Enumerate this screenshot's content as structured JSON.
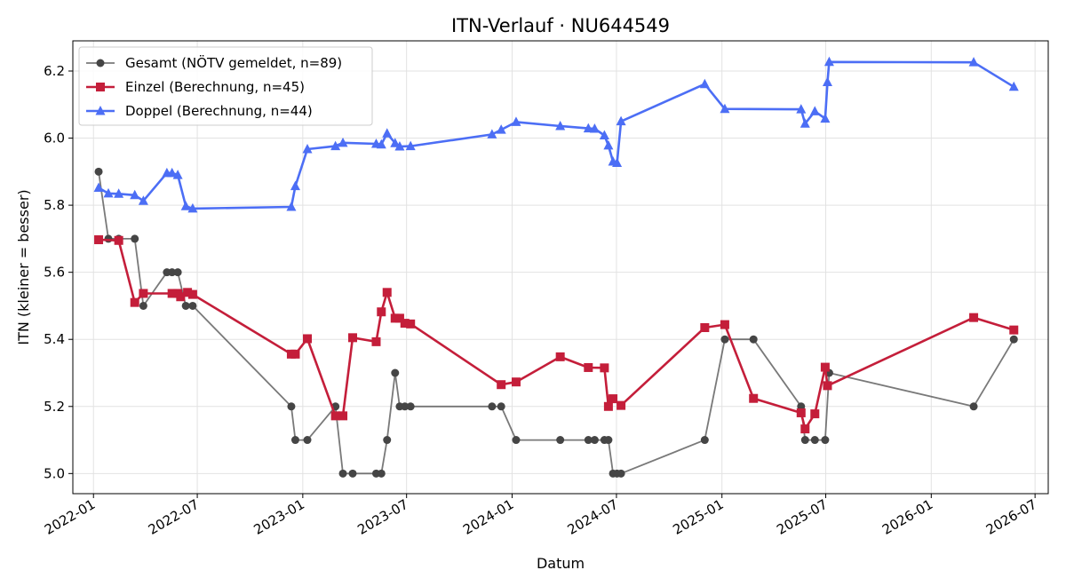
{
  "chart_data": {
    "type": "line",
    "title": "ITN-Verlauf · NU644549",
    "xlabel": "Datum",
    "ylabel": "ITN  (kleiner = besser)",
    "x_axis": "date",
    "xlim": [
      "2021-11-26",
      "2026-07-24"
    ],
    "ylim": [
      4.94,
      6.29
    ],
    "x_ticks": [
      "2022-01",
      "2022-07",
      "2023-01",
      "2023-07",
      "2024-01",
      "2024-07",
      "2025-01",
      "2025-07",
      "2026-01",
      "2026-07"
    ],
    "y_ticks": [
      "5.0",
      "5.2",
      "5.4",
      "5.6",
      "5.8",
      "6.0",
      "6.2"
    ],
    "grid": true,
    "legend_position": "top-left",
    "series": [
      {
        "name": "Gesamt (NÖTV gemeldet, n=89)",
        "color": "#454545",
        "marker": "circle",
        "points": [
          [
            "2022-01-10",
            5.9
          ],
          [
            "2022-01-27",
            5.7
          ],
          [
            "2022-02-14",
            5.7
          ],
          [
            "2022-03-14",
            5.7
          ],
          [
            "2022-03-29",
            5.5
          ],
          [
            "2022-05-09",
            5.6
          ],
          [
            "2022-05-18",
            5.6
          ],
          [
            "2022-05-28",
            5.6
          ],
          [
            "2022-06-11",
            5.5
          ],
          [
            "2022-06-23",
            5.5
          ],
          [
            "2022-12-12",
            5.2
          ],
          [
            "2022-12-19",
            5.1
          ],
          [
            "2023-01-09",
            5.1
          ],
          [
            "2023-02-27",
            5.2
          ],
          [
            "2023-03-12",
            5.0
          ],
          [
            "2023-03-29",
            5.0
          ],
          [
            "2023-05-09",
            5.0
          ],
          [
            "2023-05-18",
            5.0
          ],
          [
            "2023-05-28",
            5.1
          ],
          [
            "2023-06-11",
            5.3
          ],
          [
            "2023-06-19",
            5.2
          ],
          [
            "2023-06-28",
            5.2
          ],
          [
            "2023-07-08",
            5.2
          ],
          [
            "2023-11-27",
            5.2
          ],
          [
            "2023-12-13",
            5.2
          ],
          [
            "2024-01-08",
            5.1
          ],
          [
            "2024-03-25",
            5.1
          ],
          [
            "2024-05-13",
            5.1
          ],
          [
            "2024-05-24",
            5.1
          ],
          [
            "2024-06-10",
            5.1
          ],
          [
            "2024-06-17",
            5.1
          ],
          [
            "2024-06-25",
            5.0
          ],
          [
            "2024-07-02",
            5.0
          ],
          [
            "2024-07-09",
            5.0
          ],
          [
            "2024-12-02",
            5.1
          ],
          [
            "2025-01-06",
            5.4
          ],
          [
            "2025-02-25",
            5.4
          ],
          [
            "2025-05-19",
            5.2
          ],
          [
            "2025-05-26",
            5.1
          ],
          [
            "2025-06-12",
            5.1
          ],
          [
            "2025-06-30",
            5.1
          ],
          [
            "2025-07-07",
            5.3
          ],
          [
            "2026-03-16",
            5.2
          ],
          [
            "2026-05-25",
            5.4
          ]
        ]
      },
      {
        "name": "Einzel (Berechnung, n=45)",
        "color": "#c41e3a",
        "marker": "square",
        "points": [
          [
            "2022-01-10",
            5.697
          ],
          [
            "2022-02-14",
            5.695
          ],
          [
            "2022-03-14",
            5.51
          ],
          [
            "2022-03-29",
            5.537
          ],
          [
            "2022-05-18",
            5.537
          ],
          [
            "2022-05-28",
            5.537
          ],
          [
            "2022-06-02",
            5.527
          ],
          [
            "2022-06-14",
            5.54
          ],
          [
            "2022-06-23",
            5.534
          ],
          [
            "2022-12-12",
            5.356
          ],
          [
            "2022-12-19",
            5.356
          ],
          [
            "2023-01-09",
            5.402
          ],
          [
            "2023-02-27",
            5.172
          ],
          [
            "2023-03-12",
            5.172
          ],
          [
            "2023-03-29",
            5.405
          ],
          [
            "2023-05-09",
            5.393
          ],
          [
            "2023-05-18",
            5.482
          ],
          [
            "2023-05-28",
            5.54
          ],
          [
            "2023-06-11",
            5.463
          ],
          [
            "2023-06-19",
            5.463
          ],
          [
            "2023-06-28",
            5.448
          ],
          [
            "2023-07-08",
            5.446
          ],
          [
            "2023-12-13",
            5.265
          ],
          [
            "2024-01-08",
            5.273
          ],
          [
            "2024-03-25",
            5.348
          ],
          [
            "2024-05-13",
            5.316
          ],
          [
            "2024-06-10",
            5.315
          ],
          [
            "2024-06-17",
            5.2
          ],
          [
            "2024-06-25",
            5.223
          ],
          [
            "2024-07-09",
            5.203
          ],
          [
            "2024-12-02",
            5.435
          ],
          [
            "2025-01-06",
            5.444
          ],
          [
            "2025-02-25",
            5.224
          ],
          [
            "2025-05-19",
            5.181
          ],
          [
            "2025-05-26",
            5.133
          ],
          [
            "2025-06-12",
            5.178
          ],
          [
            "2025-06-30",
            5.317
          ],
          [
            "2025-07-04",
            5.262
          ],
          [
            "2026-03-16",
            5.465
          ],
          [
            "2026-05-25",
            5.428
          ]
        ]
      },
      {
        "name": "Doppel (Berechnung, n=44)",
        "color": "#4c6ef5",
        "marker": "triangle",
        "points": [
          [
            "2022-01-10",
            5.852
          ],
          [
            "2022-01-27",
            5.835
          ],
          [
            "2022-02-14",
            5.834
          ],
          [
            "2022-03-14",
            5.83
          ],
          [
            "2022-03-29",
            5.813
          ],
          [
            "2022-05-09",
            5.896
          ],
          [
            "2022-05-18",
            5.896
          ],
          [
            "2022-05-28",
            5.89
          ],
          [
            "2022-06-11",
            5.797
          ],
          [
            "2022-06-23",
            5.79
          ],
          [
            "2022-12-12",
            5.795
          ],
          [
            "2022-12-19",
            5.857
          ],
          [
            "2023-01-09",
            5.967
          ],
          [
            "2023-02-27",
            5.976
          ],
          [
            "2023-03-12",
            5.986
          ],
          [
            "2023-05-09",
            5.983
          ],
          [
            "2023-05-18",
            5.981
          ],
          [
            "2023-05-28",
            6.014
          ],
          [
            "2023-06-11",
            5.985
          ],
          [
            "2023-06-19",
            5.975
          ],
          [
            "2023-07-08",
            5.976
          ],
          [
            "2023-11-27",
            6.011
          ],
          [
            "2023-12-13",
            6.025
          ],
          [
            "2024-01-08",
            6.048
          ],
          [
            "2024-03-25",
            6.036
          ],
          [
            "2024-05-13",
            6.029
          ],
          [
            "2024-05-24",
            6.028
          ],
          [
            "2024-06-10",
            6.008
          ],
          [
            "2024-06-17",
            5.978
          ],
          [
            "2024-06-25",
            5.93
          ],
          [
            "2024-07-02",
            5.926
          ],
          [
            "2024-07-09",
            6.05
          ],
          [
            "2024-12-02",
            6.161
          ],
          [
            "2025-01-06",
            6.087
          ],
          [
            "2025-05-19",
            6.086
          ],
          [
            "2025-05-26",
            6.043
          ],
          [
            "2025-06-12",
            6.08
          ],
          [
            "2025-06-30",
            6.058
          ],
          [
            "2025-07-04",
            6.167
          ],
          [
            "2025-07-07",
            6.227
          ],
          [
            "2026-03-16",
            6.226
          ],
          [
            "2026-05-25",
            6.153
          ]
        ]
      }
    ]
  }
}
